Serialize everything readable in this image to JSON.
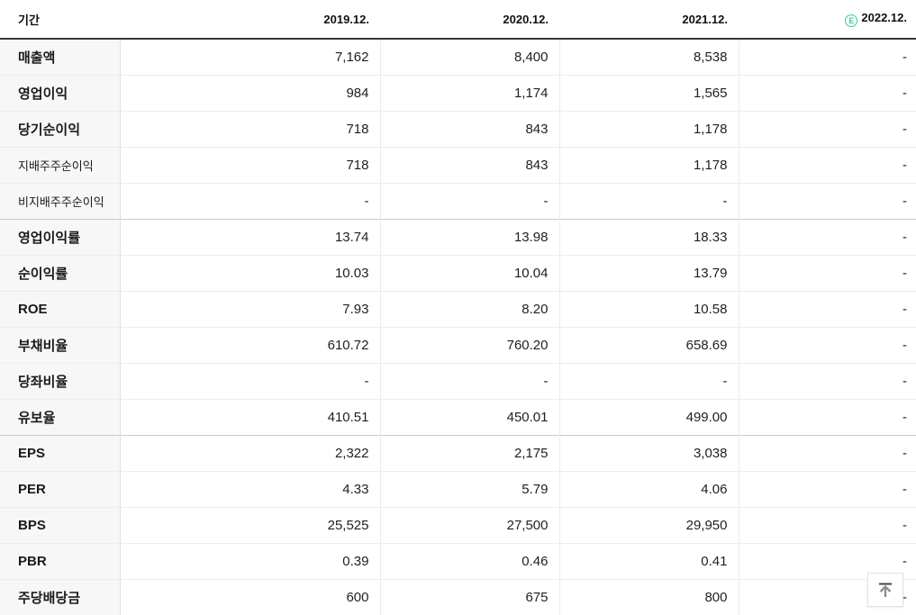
{
  "header": {
    "period_label": "기간",
    "columns": [
      {
        "label": "2019.12."
      },
      {
        "label": "2020.12."
      },
      {
        "label": "2021.12."
      },
      {
        "label": "2022.12.",
        "estimate_glyph": "E"
      }
    ]
  },
  "rows": [
    {
      "label": "매출액",
      "values": [
        "7,162",
        "8,400",
        "8,538",
        "-"
      ]
    },
    {
      "label": "영업이익",
      "values": [
        "984",
        "1,174",
        "1,565",
        "-"
      ]
    },
    {
      "label": "당기순이익",
      "values": [
        "718",
        "843",
        "1,178",
        "-"
      ]
    },
    {
      "label": "지배주주순이익",
      "sub": true,
      "values": [
        "718",
        "843",
        "1,178",
        "-"
      ]
    },
    {
      "label": "비지배주주순이익",
      "sub": true,
      "group_end": true,
      "values": [
        "-",
        "-",
        "-",
        "-"
      ]
    },
    {
      "label": "영업이익률",
      "values": [
        "13.74",
        "13.98",
        "18.33",
        "-"
      ]
    },
    {
      "label": "순이익률",
      "values": [
        "10.03",
        "10.04",
        "13.79",
        "-"
      ]
    },
    {
      "label": "ROE",
      "values": [
        "7.93",
        "8.20",
        "10.58",
        "-"
      ]
    },
    {
      "label": "부채비율",
      "values": [
        "610.72",
        "760.20",
        "658.69",
        "-"
      ]
    },
    {
      "label": "당좌비율",
      "values": [
        "-",
        "-",
        "-",
        "-"
      ]
    },
    {
      "label": "유보율",
      "group_end": true,
      "values": [
        "410.51",
        "450.01",
        "499.00",
        "-"
      ]
    },
    {
      "label": "EPS",
      "values": [
        "2,322",
        "2,175",
        "3,038",
        "-"
      ]
    },
    {
      "label": "PER",
      "values": [
        "4.33",
        "5.79",
        "4.06",
        "-"
      ]
    },
    {
      "label": "BPS",
      "values": [
        "25,525",
        "27,500",
        "29,950",
        "-"
      ]
    },
    {
      "label": "PBR",
      "values": [
        "0.39",
        "0.46",
        "0.41",
        "-"
      ]
    },
    {
      "label": "주당배당금",
      "values": [
        "600",
        "675",
        "800",
        "-"
      ]
    }
  ],
  "icons": {
    "estimate_icon": "circled-E",
    "scroll_top_icon": "arrow-up-to-line"
  },
  "colors": {
    "estimate_green": "#3fc993",
    "header_border": "#373737",
    "label_column_bg": "#f7f7f7",
    "group_divider": "#c9c9c9",
    "row_divider": "#ededed"
  }
}
